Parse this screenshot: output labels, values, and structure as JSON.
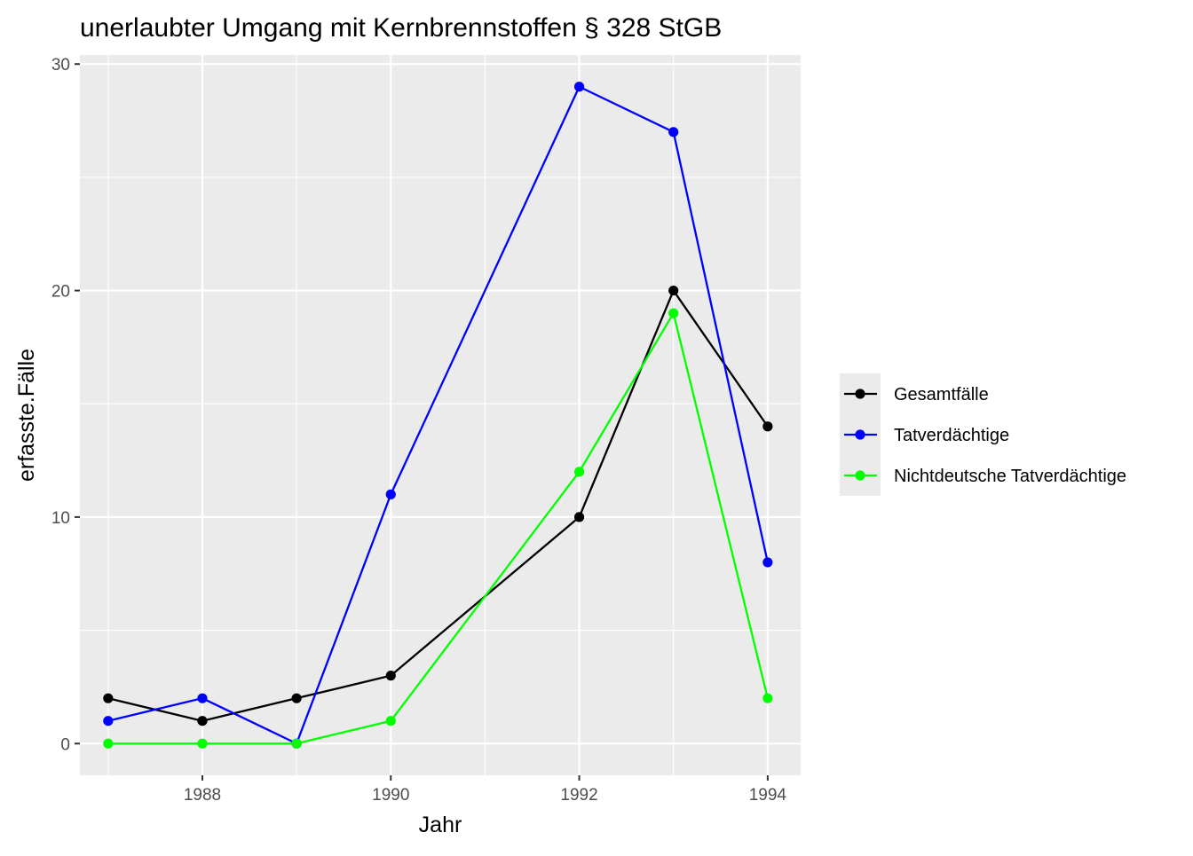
{
  "chart_data": {
    "type": "line",
    "title": "unerlaubter Umgang mit Kernbrennstoffen § 328 StGB",
    "xlabel": "Jahr",
    "ylabel": "erfasste.Fälle",
    "x": [
      1987,
      1988,
      1989,
      1990,
      1992,
      1993,
      1994
    ],
    "xlim": [
      1986.7,
      1994.35
    ],
    "ylim": [
      -1.4,
      30.4
    ],
    "x_ticks": [
      1988,
      1990,
      1992,
      1994
    ],
    "x_tick_labels": [
      "1988",
      "1990",
      "1992",
      "1994"
    ],
    "y_ticks": [
      0,
      10,
      20,
      30
    ],
    "y_tick_labels": [
      "0",
      "10",
      "20",
      "30"
    ],
    "grid": true,
    "legend_position": "right",
    "series": [
      {
        "name": "Gesamtfälle",
        "color": "#000000",
        "values": [
          2,
          1,
          2,
          3,
          10,
          20,
          14
        ]
      },
      {
        "name": "Tatverdächtige",
        "color": "#0000ff",
        "values": [
          1,
          2,
          0,
          11,
          29,
          27,
          8
        ]
      },
      {
        "name": "Nichtdeutsche Tatverdächtige",
        "color": "#00ff00",
        "values": [
          0,
          0,
          0,
          1,
          12,
          19,
          2
        ]
      }
    ]
  }
}
